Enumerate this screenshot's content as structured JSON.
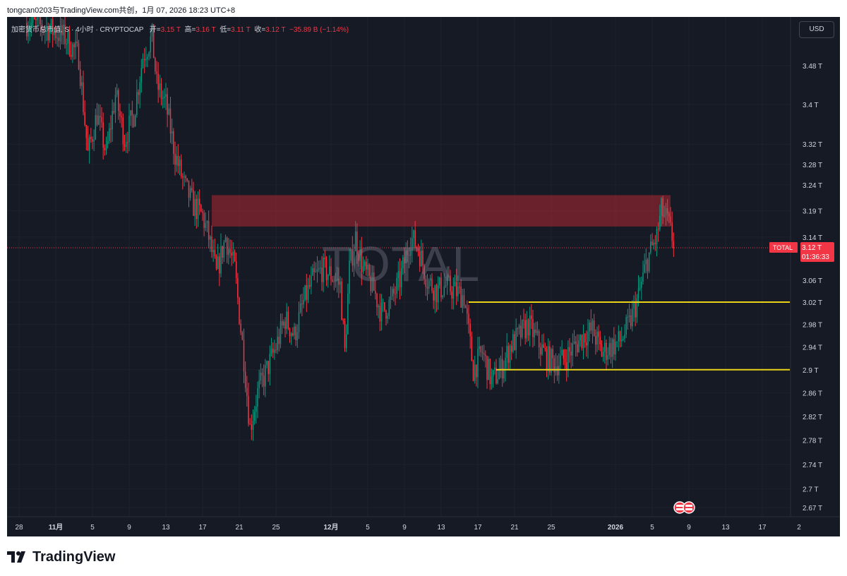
{
  "caption": "tongcan0203与TradingView.com共创，1月 07, 2026 18:23 UTC+8",
  "brand": {
    "name": "TradingView"
  },
  "colors": {
    "background": "#161a25",
    "up": "#089981",
    "down": "#f23645",
    "zone": "rgba(178,40,51,0.55)",
    "level_line": "#e8d319",
    "text": "#d1d4dc"
  },
  "header": {
    "symbol": "加密货币总市值, S · 4小时 · CRYPTOCAP",
    "open_label": "开=",
    "open": "3.15 T",
    "high_label": "高=",
    "high": "3.16 T",
    "low_label": "低=",
    "low": "3.11 T",
    "close_label": "收=",
    "close": "3.12 T",
    "change": "−35.89 B (−1.14%)"
  },
  "currency_button": "USD",
  "watermark": "TOTAL",
  "price_tag": {
    "label": "TOTAL",
    "price": "3.12 T",
    "countdown": "01:36:33"
  },
  "chart_data": {
    "type": "candlestick",
    "symbol": "TOTAL",
    "interval": "4h",
    "y_scale": "log",
    "ylim": [
      2.66,
      3.56
    ],
    "y_ticks": [
      3.48,
      3.4,
      3.32,
      3.28,
      3.24,
      3.19,
      3.14,
      3.06,
      3.02,
      2.98,
      2.94,
      2.9,
      2.86,
      2.82,
      2.78,
      2.74,
      2.7,
      2.67
    ],
    "y_tick_labels": [
      "3.48 T",
      "3.4 T",
      "3.32 T",
      "3.28 T",
      "3.24 T",
      "3.19 T",
      "3.14 T",
      "3.06 T",
      "3.02 T",
      "2.98 T",
      "2.94 T",
      "2.9 T",
      "2.86 T",
      "2.82 T",
      "2.78 T",
      "2.74 T",
      "2.7 T",
      "2.67 T"
    ],
    "x_ticks": [
      {
        "date": "2025-10-28",
        "label": "28"
      },
      {
        "date": "2025-11-01",
        "label": "11月"
      },
      {
        "date": "2025-11-05",
        "label": "5"
      },
      {
        "date": "2025-11-09",
        "label": "9"
      },
      {
        "date": "2025-11-13",
        "label": "13"
      },
      {
        "date": "2025-11-17",
        "label": "17"
      },
      {
        "date": "2025-11-21",
        "label": "21"
      },
      {
        "date": "2025-11-25",
        "label": "25"
      },
      {
        "date": "2025-12-01",
        "label": "12月"
      },
      {
        "date": "2025-12-05",
        "label": "5"
      },
      {
        "date": "2025-12-09",
        "label": "9"
      },
      {
        "date": "2025-12-13",
        "label": "13"
      },
      {
        "date": "2025-12-17",
        "label": "17"
      },
      {
        "date": "2025-12-21",
        "label": "21"
      },
      {
        "date": "2025-12-25",
        "label": "25"
      },
      {
        "date": "2026-01-01",
        "label": "2026"
      },
      {
        "date": "2026-01-05",
        "label": "5"
      },
      {
        "date": "2026-01-09",
        "label": "9"
      },
      {
        "date": "2026-01-13",
        "label": "13"
      },
      {
        "date": "2026-01-17",
        "label": "17"
      },
      {
        "date": "2026-01-21",
        "label": "2"
      }
    ],
    "path": [
      [
        "2025-10-29T00",
        3.57
      ],
      [
        "2025-10-31T00",
        3.56
      ],
      [
        "2025-11-02T00",
        3.54
      ],
      [
        "2025-11-03T12",
        3.5
      ],
      [
        "2025-11-04T12",
        3.3
      ],
      [
        "2025-11-05T12",
        3.38
      ],
      [
        "2025-11-06T12",
        3.3
      ],
      [
        "2025-11-07T12",
        3.42
      ],
      [
        "2025-11-08T12",
        3.33
      ],
      [
        "2025-11-09T12",
        3.38
      ],
      [
        "2025-11-10T12",
        3.5
      ],
      [
        "2025-11-11T12",
        3.54
      ],
      [
        "2025-11-12T00",
        3.44
      ],
      [
        "2025-11-13T00",
        3.4
      ],
      [
        "2025-11-14T00",
        3.3
      ],
      [
        "2025-11-15T00",
        3.24
      ],
      [
        "2025-11-16T00",
        3.2
      ],
      [
        "2025-11-17T00",
        3.18
      ],
      [
        "2025-11-17T16",
        3.14
      ],
      [
        "2025-11-18T12",
        3.07
      ],
      [
        "2025-11-19T12",
        3.14
      ],
      [
        "2025-11-20T12",
        3.08
      ],
      [
        "2025-11-21T12",
        2.92
      ],
      [
        "2025-11-22T04",
        2.8
      ],
      [
        "2025-11-23T00",
        2.86
      ],
      [
        "2025-11-24T00",
        2.9
      ],
      [
        "2025-11-25T00",
        2.94
      ],
      [
        "2025-11-26T00",
        2.99
      ],
      [
        "2025-11-27T00",
        2.96
      ],
      [
        "2025-11-28T00",
        3.02
      ],
      [
        "2025-11-29T00",
        3.06
      ],
      [
        "2025-11-30T00",
        3.08
      ],
      [
        "2025-12-01T00",
        3.07
      ],
      [
        "2025-12-02T00",
        3.05
      ],
      [
        "2025-12-02T12",
        2.93
      ],
      [
        "2025-12-03T00",
        3.08
      ],
      [
        "2025-12-03T16",
        3.14
      ],
      [
        "2025-12-04T12",
        3.08
      ],
      [
        "2025-12-05T12",
        3.05
      ],
      [
        "2025-12-06T12",
        3.0
      ],
      [
        "2025-12-07T12",
        3.02
      ],
      [
        "2025-12-08T12",
        3.06
      ],
      [
        "2025-12-09T16",
        3.14
      ],
      [
        "2025-12-10T12",
        3.12
      ],
      [
        "2025-12-11T12",
        3.06
      ],
      [
        "2025-12-12T12",
        3.04
      ],
      [
        "2025-12-13T12",
        3.05
      ],
      [
        "2025-12-14T12",
        3.04
      ],
      [
        "2025-12-15T12",
        3.03
      ],
      [
        "2025-12-16T12",
        2.9
      ],
      [
        "2025-12-17T12",
        2.93
      ],
      [
        "2025-12-18T12",
        2.88
      ],
      [
        "2025-12-19T12",
        2.9
      ],
      [
        "2025-12-20T12",
        2.94
      ],
      [
        "2025-12-21T12",
        2.96
      ],
      [
        "2025-12-22T12",
        2.98
      ],
      [
        "2025-12-23T12",
        2.95
      ],
      [
        "2025-12-24T12",
        2.92
      ],
      [
        "2025-12-25T12",
        2.91
      ],
      [
        "2025-12-26T12",
        2.92
      ],
      [
        "2025-12-27T12",
        2.94
      ],
      [
        "2025-12-28T12",
        2.96
      ],
      [
        "2025-12-29T12",
        2.97
      ],
      [
        "2025-12-30T12",
        2.93
      ],
      [
        "2025-12-31T12",
        2.94
      ],
      [
        "2026-01-01T12",
        2.95
      ],
      [
        "2026-01-02T12",
        2.98
      ],
      [
        "2026-01-03T12",
        3.03
      ],
      [
        "2026-01-04T12",
        3.1
      ],
      [
        "2026-01-05T12",
        3.14
      ],
      [
        "2026-01-06T00",
        3.19
      ],
      [
        "2026-01-06T16",
        3.17
      ],
      [
        "2026-01-07T08",
        3.13
      ]
    ],
    "zone": {
      "x_start": "2025-11-18",
      "x_end": "2026-01-07",
      "y_low": 3.16,
      "y_high": 3.22
    },
    "lines": [
      {
        "x_start": "2025-12-16",
        "x_end": "2026-01-20",
        "y": 3.02
      },
      {
        "x_start": "2025-12-19",
        "x_end": "2026-01-20",
        "y": 2.9
      }
    ],
    "current_price": 3.12,
    "event_markers": [
      "2026-01-08",
      "2026-01-09"
    ]
  }
}
